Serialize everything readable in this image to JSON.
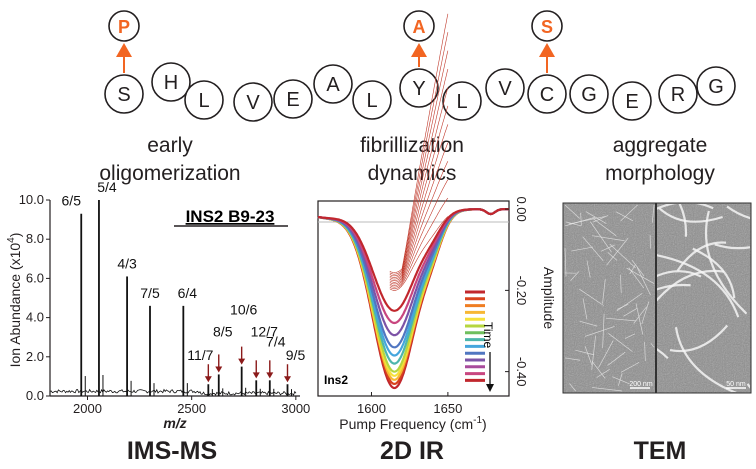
{
  "sequence": {
    "residues": [
      "S",
      "H",
      "L",
      "V",
      "E",
      "A",
      "L",
      "Y",
      "L",
      "V",
      "C",
      "G",
      "E",
      "R",
      "G"
    ],
    "mutations": [
      {
        "index": 0,
        "letter": "P"
      },
      {
        "index": 7,
        "letter": "A"
      },
      {
        "index": 10,
        "letter": "S"
      }
    ],
    "colors": {
      "mutation": "#f26522",
      "circle_stroke": "#231f20"
    }
  },
  "captions": {
    "left": [
      "early",
      "oligomerization"
    ],
    "middle": [
      "fibrillization",
      "dynamics"
    ],
    "right": [
      "aggregate",
      "morphology"
    ]
  },
  "panels": {
    "ims": {
      "bottom_title": "IMS-MS",
      "inset_title": "INS2 B9-23",
      "ylabel": "Ion Abundance (x10",
      "ylabel_sup": "4",
      "ylabel_end": ")",
      "xlabel": "m/z",
      "yticks": [
        "0.0",
        "2.0",
        "4.0",
        "6.0",
        "8.0",
        "10.0"
      ],
      "xticks": [
        "2000",
        "2500",
        "3000"
      ]
    },
    "ir": {
      "bottom_title": "2D IR",
      "xlabel": "Pump Frequency (cm",
      "xlabel_sup": "-1",
      "xlabel_end": ")",
      "ylabel": "Amplitude",
      "yticks": [
        "0.00",
        "-0.20",
        "-0.40"
      ],
      "xticks": [
        "1600",
        "1650"
      ],
      "inset_label": "Ins2",
      "legend_label": "Time"
    },
    "tem": {
      "bottom_title": "TEM",
      "scale_left": "200 nm",
      "scale_right": "50 nm"
    }
  },
  "chart_data": [
    {
      "type": "bar",
      "ylabel": "Ion Abundance (x10^4)",
      "xlabel": "m/z",
      "xlim": [
        1820,
        3020
      ],
      "ylim": [
        0,
        10
      ],
      "peaks": [
        {
          "label": "6/5",
          "x": 1970,
          "y": 9.3,
          "arrow": false
        },
        {
          "label": "5/4",
          "x": 2055,
          "y": 10.0,
          "arrow": false
        },
        {
          "label": "4/3",
          "x": 2190,
          "y": 6.1,
          "arrow": false
        },
        {
          "label": "7/5",
          "x": 2300,
          "y": 4.6,
          "arrow": false
        },
        {
          "label": "6/4",
          "x": 2460,
          "y": 4.6,
          "arrow": false
        },
        {
          "label": "11/7",
          "x": 2580,
          "y": 0.6,
          "arrow": true
        },
        {
          "label": "8/5",
          "x": 2630,
          "y": 1.1,
          "arrow": true
        },
        {
          "label": "10/6",
          "x": 2740,
          "y": 1.5,
          "arrow": true
        },
        {
          "label": "12/7",
          "x": 2810,
          "y": 0.8,
          "arrow": true
        },
        {
          "label": "7/4",
          "x": 2875,
          "y": 0.8,
          "arrow": true
        },
        {
          "label": "9/5",
          "x": 2960,
          "y": 0.6,
          "arrow": true
        }
      ]
    },
    {
      "type": "line",
      "xlabel": "Pump Frequency (cm-1)",
      "ylabel": "Amplitude",
      "xlim": [
        1565,
        1690
      ],
      "ylim": [
        -0.46,
        0.02
      ],
      "minimum_frequency": 1615,
      "min_depths": [
        -0.25,
        -0.28,
        -0.31,
        -0.34,
        -0.36,
        -0.38,
        -0.4,
        -0.41,
        -0.42,
        -0.43,
        -0.44
      ],
      "series_colors": [
        "#c1272d",
        "#d9431e",
        "#ef7d22",
        "#f7b733",
        "#f6e13a",
        "#b6d63f",
        "#6fbf5d",
        "#4db6ac",
        "#45a6dd",
        "#5076c1",
        "#7d53a6",
        "#a84b9c",
        "#c8467f",
        "#c1272d"
      ]
    }
  ]
}
